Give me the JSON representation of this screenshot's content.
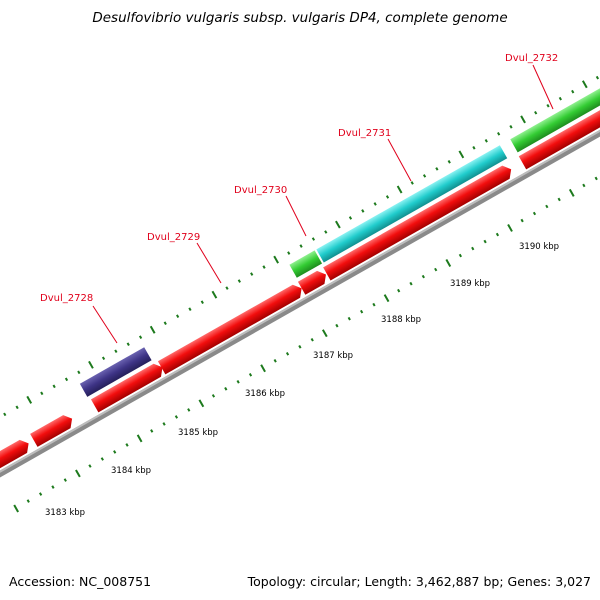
{
  "title": "Desulfovibrio vulgaris subsp. vulgaris DP4, complete genome",
  "footer": {
    "accession": "Accession: NC_008751",
    "summary": "Topology: circular; Length: 3,462,887 bp; Genes: 3,027"
  },
  "colors": {
    "cds_forward": "#f20d0d",
    "backbone": "#8a8a8a",
    "tick_major": "#1d7a1d",
    "tick_minor": "#1d7a1d",
    "label": "#e0001b",
    "gene_purple": "#3e3486",
    "gene_cyan": "#20cccc",
    "gene_green": "#33cc33"
  },
  "scale_labels": [
    "3183 kbp",
    "3184 kbp",
    "3185 kbp",
    "3186 kbp",
    "3187 kbp",
    "3188 kbp",
    "3189 kbp",
    "3190 kbp"
  ],
  "gene_labels": [
    "Dvul_2728",
    "Dvul_2729",
    "Dvul_2730",
    "Dvul_2731",
    "Dvul_2732"
  ]
}
